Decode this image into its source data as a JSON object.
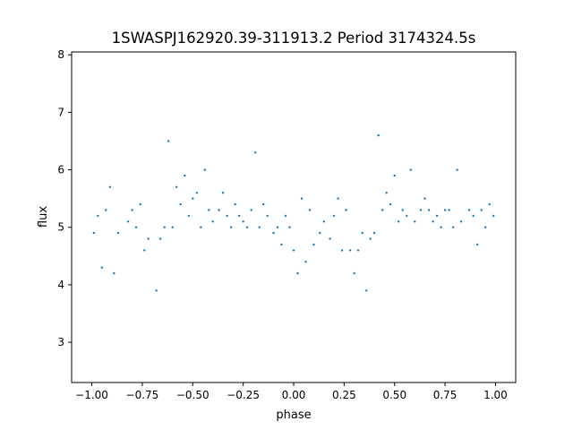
{
  "chart_data": {
    "type": "scatter",
    "title": "1SWASPJ162920.39-311913.2 Period 3174324.5s",
    "xlabel": "phase",
    "ylabel": "flux",
    "xlim": [
      -1.1,
      1.1
    ],
    "ylim": [
      2.3,
      8.05
    ],
    "xticks": [
      -1.0,
      -0.75,
      -0.5,
      -0.25,
      0.0,
      0.25,
      0.5,
      0.75,
      1.0
    ],
    "xtick_labels": [
      "−1.00",
      "−0.75",
      "−0.50",
      "−0.25",
      "0.00",
      "0.25",
      "0.50",
      "0.75",
      "1.00"
    ],
    "yticks": [
      3,
      4,
      5,
      6,
      7,
      8
    ],
    "ytick_labels": [
      "3",
      "4",
      "5",
      "6",
      "7",
      "8"
    ],
    "grid": false,
    "marker_color": "#1f77b4",
    "series": [
      {
        "x": [
          -0.99,
          -0.97,
          -0.95,
          -0.93,
          -0.91,
          -0.89,
          -0.87,
          -0.82,
          -0.8,
          -0.78,
          -0.76,
          -0.74,
          -0.72,
          -0.68,
          -0.66,
          -0.64,
          -0.62,
          -0.6,
          -0.58,
          -0.56,
          -0.54,
          -0.52,
          -0.5,
          -0.48,
          -0.46,
          -0.44,
          -0.42,
          -0.4,
          -0.37,
          -0.35,
          -0.33,
          -0.31,
          -0.29,
          -0.27,
          -0.25,
          -0.23,
          -0.21,
          -0.19,
          -0.17,
          -0.15,
          -0.13,
          -0.1,
          -0.08,
          -0.06,
          -0.04,
          -0.02,
          0.0,
          0.02,
          0.04,
          0.06,
          0.08,
          0.1,
          0.13,
          0.15,
          0.18,
          0.2,
          0.22,
          0.24,
          0.26,
          0.28,
          0.3,
          0.32,
          0.34,
          0.36,
          0.38,
          0.4,
          0.42,
          0.44,
          0.46,
          0.48,
          0.5,
          0.52,
          0.54,
          0.56,
          0.58,
          0.6,
          0.63,
          0.65,
          0.67,
          0.69,
          0.71,
          0.73,
          0.75,
          0.77,
          0.79,
          0.81,
          0.83,
          0.87,
          0.89,
          0.91,
          0.93,
          0.95,
          0.97,
          0.99
        ],
        "y": [
          4.9,
          5.2,
          4.3,
          5.3,
          5.7,
          4.2,
          4.9,
          5.1,
          5.3,
          5.0,
          5.4,
          4.6,
          4.8,
          3.9,
          4.8,
          5.0,
          6.5,
          5.0,
          5.7,
          5.4,
          5.9,
          5.2,
          5.5,
          5.6,
          5.0,
          6.0,
          5.3,
          5.1,
          5.3,
          5.6,
          5.2,
          5.0,
          5.4,
          5.2,
          5.1,
          5.0,
          5.3,
          6.3,
          5.0,
          5.4,
          5.2,
          4.9,
          5.0,
          4.7,
          5.2,
          5.0,
          4.6,
          4.2,
          5.5,
          4.4,
          5.3,
          4.7,
          4.9,
          5.1,
          4.8,
          5.2,
          5.5,
          4.6,
          5.3,
          4.6,
          4.2,
          4.6,
          4.9,
          3.9,
          4.8,
          4.9,
          6.6,
          5.3,
          5.6,
          5.4,
          5.9,
          5.1,
          5.3,
          5.2,
          6.0,
          5.1,
          5.3,
          5.5,
          5.3,
          5.1,
          5.2,
          5.0,
          5.3,
          5.3,
          5.0,
          6.0,
          5.1,
          5.3,
          5.2,
          4.7,
          5.3,
          5.0,
          5.4,
          5.2
        ]
      }
    ]
  }
}
